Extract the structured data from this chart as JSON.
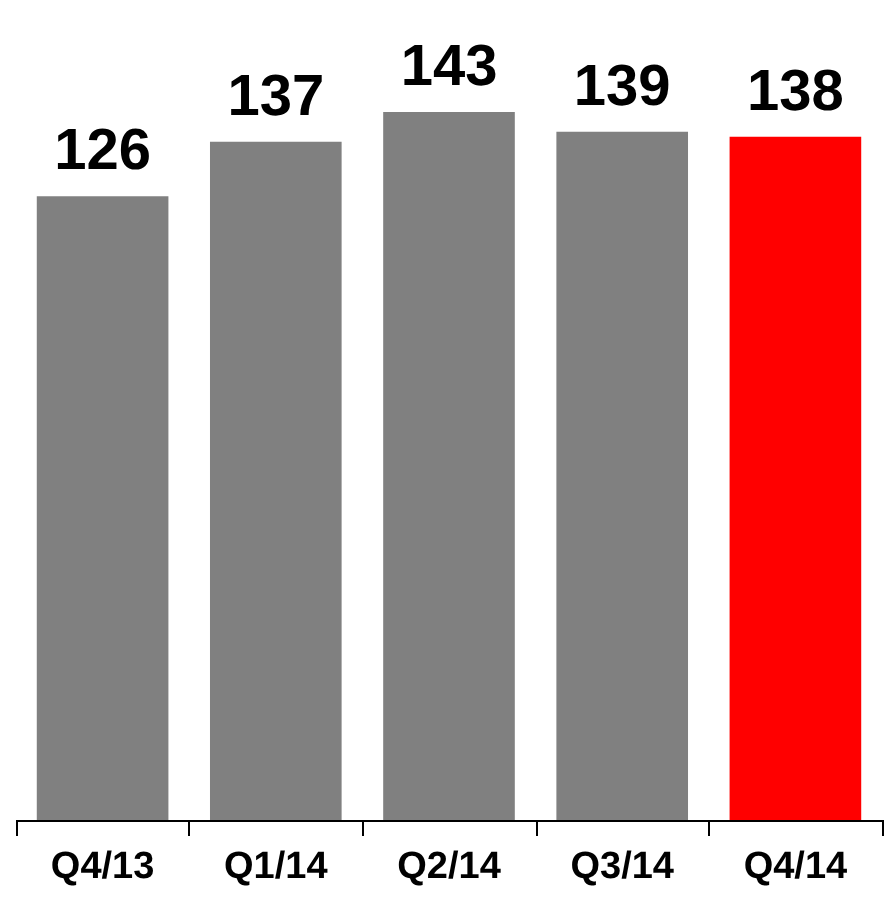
{
  "chart_data": {
    "type": "bar",
    "categories": [
      "Q4/13",
      "Q1/14",
      "Q2/14",
      "Q3/14",
      "Q4/14"
    ],
    "values": [
      126,
      137,
      143,
      139,
      138
    ],
    "colors": [
      "#808080",
      "#808080",
      "#808080",
      "#808080",
      "#ff0000"
    ],
    "data_labels": true
  }
}
